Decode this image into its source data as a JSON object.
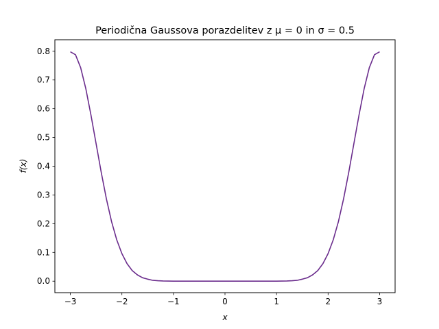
{
  "chart_data": {
    "type": "line",
    "title": "Periodična Gaussova porazdelitev z μ = 0 in σ = 0.5",
    "xlabel": "x",
    "ylabel": "f(x)",
    "xlim": [
      -3.3,
      3.3
    ],
    "ylim": [
      -0.04,
      0.84
    ],
    "xticks": [
      -3,
      -2,
      -1,
      0,
      1,
      2,
      3
    ],
    "xtick_labels": [
      "−3",
      "−2",
      "−1",
      "0",
      "1",
      "2",
      "3"
    ],
    "yticks": [
      0.0,
      0.1,
      0.2,
      0.3,
      0.4,
      0.5,
      0.6,
      0.7,
      0.8
    ],
    "ytick_labels": [
      "0.0",
      "0.1",
      "0.2",
      "0.3",
      "0.4",
      "0.5",
      "0.6",
      "0.7",
      "0.8"
    ],
    "grid": false,
    "series": [
      {
        "color": "#6a2c8c",
        "x": [
          -3.0,
          -2.9,
          -2.8,
          -2.7,
          -2.6,
          -2.5,
          -2.4,
          -2.3,
          -2.2,
          -2.1,
          -2.0,
          -1.9,
          -1.8,
          -1.7,
          -1.6,
          -1.5,
          -1.4,
          -1.3,
          -1.2,
          -1.0,
          -0.5,
          0.0,
          0.5,
          1.0,
          1.2,
          1.3,
          1.4,
          1.5,
          1.6,
          1.7,
          1.8,
          1.9,
          2.0,
          2.1,
          2.2,
          2.3,
          2.4,
          2.5,
          2.6,
          2.7,
          2.8,
          2.9,
          3.0
        ],
        "y": [
          0.798,
          0.788,
          0.743,
          0.67,
          0.578,
          0.478,
          0.378,
          0.286,
          0.207,
          0.144,
          0.096,
          0.061,
          0.037,
          0.022,
          0.012,
          0.007,
          0.003,
          0.0015,
          0.0007,
          0.0001,
          0.0,
          0.0,
          0.0,
          0.0001,
          0.0007,
          0.0015,
          0.003,
          0.007,
          0.012,
          0.022,
          0.037,
          0.061,
          0.096,
          0.144,
          0.207,
          0.286,
          0.378,
          0.478,
          0.578,
          0.67,
          0.743,
          0.788,
          0.798
        ]
      }
    ]
  }
}
